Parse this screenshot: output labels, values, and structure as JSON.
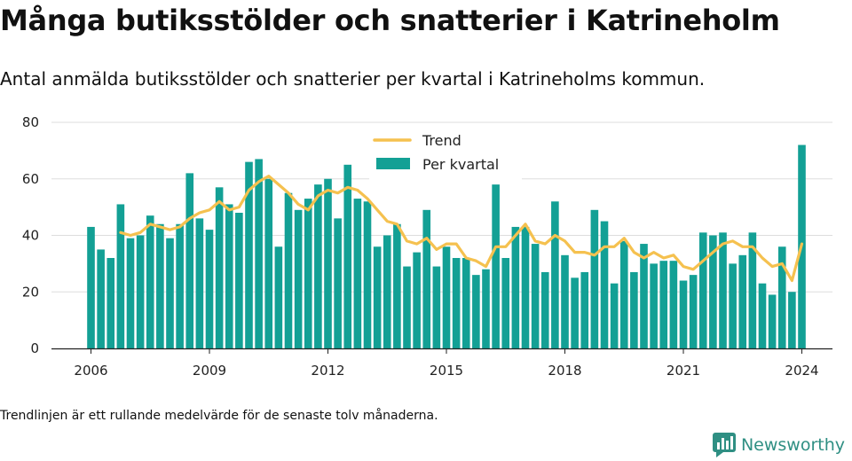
{
  "header": {
    "title": "Många butiksstölder och snatterier i Katrineholm",
    "subtitle": "Antal anmälda butiksstölder och snatterier per kvartal i Katrineholms kommun."
  },
  "footer": {
    "note": "Trendlinjen är ett rullande medelvärde för de senaste tolv månaderna.",
    "brand": "Newsworthy",
    "brand_icon": "bar-chart-logo-icon"
  },
  "colors": {
    "bar": "#13a095",
    "trend": "#f5c14f",
    "grid": "#dddddd",
    "brand": "#2f8f83"
  },
  "chart_data": {
    "type": "bar",
    "x_start": "2006-Q1",
    "quarters_per_year": 4,
    "xticks": [
      "2006",
      "2009",
      "2012",
      "2015",
      "2018",
      "2021",
      "2024"
    ],
    "yticks": [
      0,
      20,
      40,
      60,
      80
    ],
    "ylim": [
      0,
      80
    ],
    "grid": true,
    "legend_position": "top-center",
    "series": [
      {
        "name": "Per kvartal",
        "kind": "bar",
        "values": [
          43,
          35,
          32,
          51,
          39,
          40,
          47,
          44,
          39,
          44,
          62,
          46,
          42,
          57,
          51,
          48,
          66,
          67,
          60,
          36,
          55,
          49,
          53,
          58,
          60,
          46,
          65,
          53,
          52,
          36,
          40,
          44,
          29,
          34,
          49,
          29,
          36,
          32,
          32,
          26,
          28,
          58,
          32,
          43,
          43,
          37,
          27,
          52,
          33,
          25,
          27,
          49,
          45,
          23,
          38,
          27,
          37,
          30,
          31,
          31,
          24,
          26,
          41,
          40,
          41,
          30,
          33,
          41,
          23,
          19,
          36,
          20,
          72
        ]
      },
      {
        "name": "Trend",
        "kind": "line",
        "start_index": 3,
        "values": [
          41,
          40,
          41,
          44,
          43,
          42,
          43,
          46,
          48,
          49,
          52,
          49,
          50,
          56,
          59,
          61,
          58,
          55,
          51,
          49,
          54,
          56,
          55,
          57,
          56,
          53,
          49,
          45,
          44,
          38,
          37,
          39,
          35,
          37,
          37,
          32,
          31,
          29,
          36,
          36,
          40,
          44,
          38,
          37,
          40,
          38,
          34,
          34,
          33,
          36,
          36,
          39,
          34,
          32,
          34,
          32,
          33,
          29,
          28,
          31,
          34,
          37,
          38,
          36,
          36,
          32,
          29,
          30,
          24,
          37
        ]
      }
    ]
  }
}
